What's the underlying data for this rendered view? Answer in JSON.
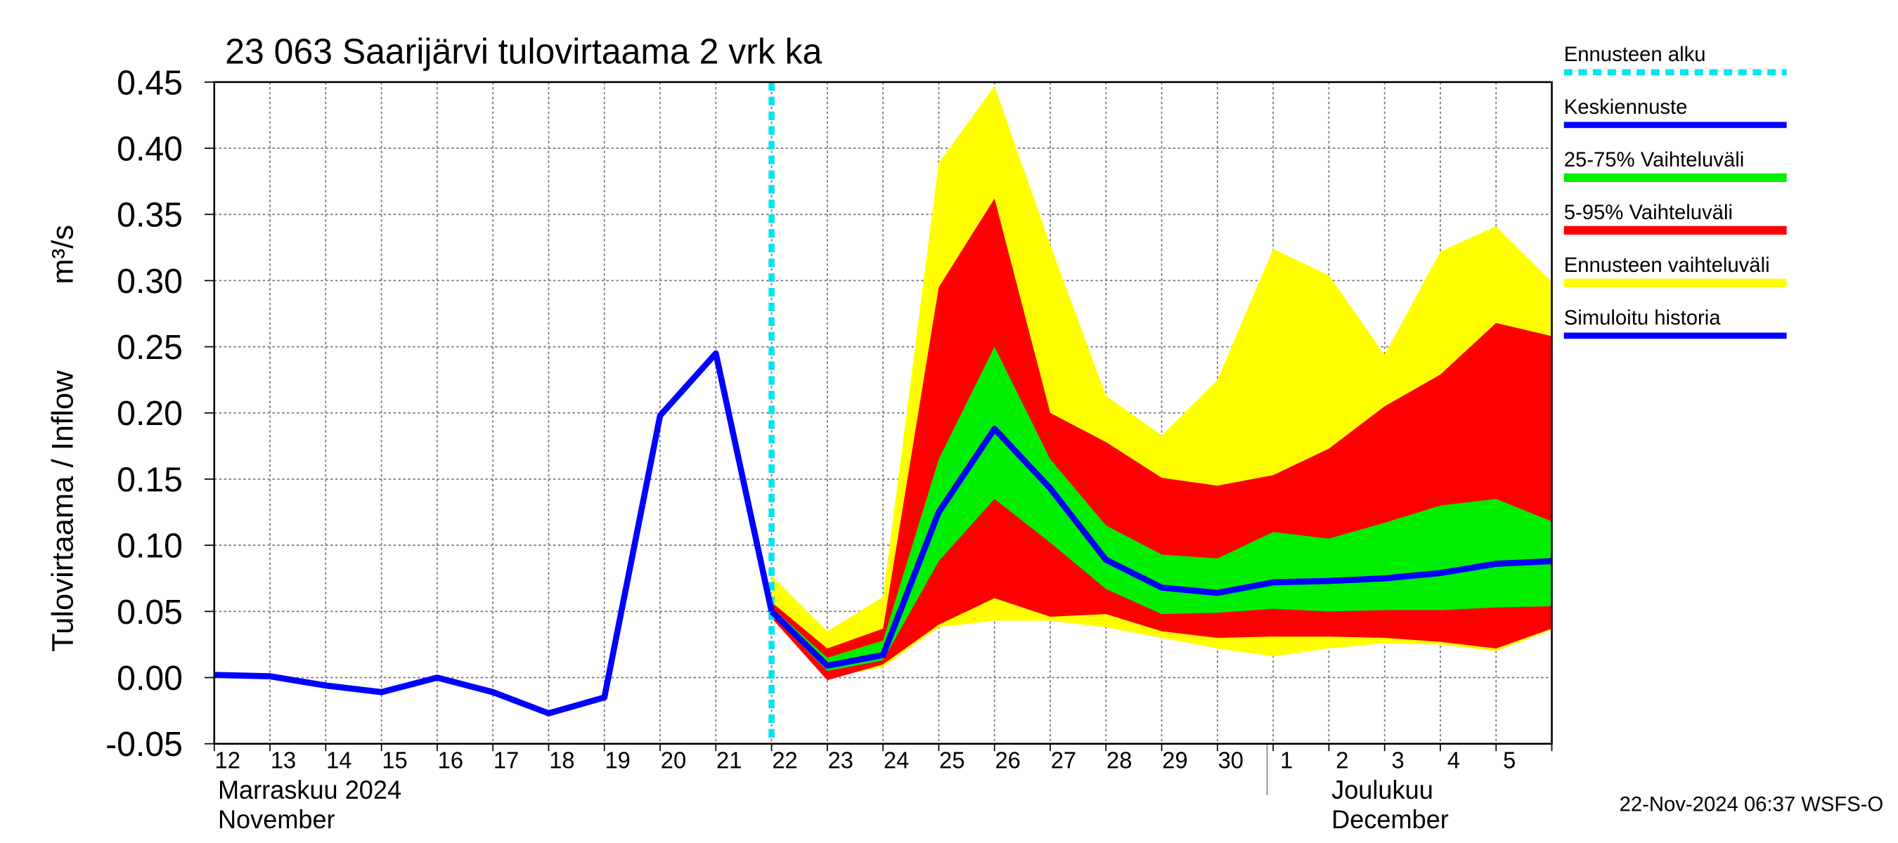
{
  "chart_data": {
    "type": "line",
    "title": "23 063 Saarijärvi tulovirtaama 2 vrk ka",
    "y_label": "Tulovirtaama / Inflow",
    "y_unit": "m³/s",
    "month_labels": [
      "Marraskuu 2024",
      "November",
      "Joulukuu",
      "December"
    ],
    "footer": "22-Nov-2024 06:37 WSFS-O",
    "categories": [
      "12",
      "13",
      "14",
      "15",
      "16",
      "17",
      "18",
      "19",
      "20",
      "21",
      "22",
      "23",
      "24",
      "25",
      "26",
      "27",
      "28",
      "29",
      "30",
      "1",
      "2",
      "3",
      "4",
      "5",
      null
    ],
    "ylim": [
      -0.05,
      0.45
    ],
    "yticks": [
      {
        "value": -0.05,
        "label": "-0.05"
      },
      {
        "value": 0,
        "label": "0.00"
      },
      {
        "value": 0.05,
        "label": "0.05"
      },
      {
        "value": 0.1,
        "label": "0.10"
      },
      {
        "value": 0.15,
        "label": "0.15"
      },
      {
        "value": 0.2,
        "label": "0.20"
      },
      {
        "value": 0.25,
        "label": "0.25"
      },
      {
        "value": 0.3,
        "label": "0.30"
      },
      {
        "value": 0.35,
        "label": "0.35"
      },
      {
        "value": 0.4,
        "label": "0.40"
      },
      {
        "value": 0.45,
        "label": "0.45"
      }
    ],
    "grid": true,
    "series": [
      {
        "name": "Ennusteen alku",
        "color": "#00e5ee",
        "style": "vline",
        "x": 10
      },
      {
        "name": "Keskiennuste",
        "color": "#0000ff",
        "style": "line",
        "values": [
          null,
          null,
          null,
          null,
          null,
          null,
          null,
          null,
          null,
          null,
          0.05,
          0.009,
          0.017,
          0.125,
          0.188,
          0.143,
          0.089,
          0.068,
          0.064,
          0.072,
          0.073,
          0.075,
          0.079,
          0.086,
          0.088
        ]
      },
      {
        "name": "25-75% Vaihteluväli",
        "color": "#00ee00",
        "style": "band",
        "lower": [
          null,
          null,
          null,
          null,
          null,
          null,
          null,
          null,
          null,
          null,
          0.047,
          0.005,
          0.013,
          0.088,
          0.135,
          0.102,
          0.067,
          0.048,
          0.049,
          0.052,
          0.05,
          0.051,
          0.051,
          0.053,
          0.054
        ],
        "upper": [
          null,
          null,
          null,
          null,
          null,
          null,
          null,
          null,
          null,
          null,
          0.053,
          0.015,
          0.028,
          0.165,
          0.25,
          0.165,
          0.115,
          0.093,
          0.09,
          0.11,
          0.105,
          0.117,
          0.13,
          0.135,
          0.118
        ]
      },
      {
        "name": "5-95% Vaihteluväli",
        "color": "#ff0000",
        "style": "band",
        "lower": [
          null,
          null,
          null,
          null,
          null,
          null,
          null,
          null,
          null,
          null,
          0.045,
          -0.002,
          0.01,
          0.04,
          0.06,
          0.046,
          0.048,
          0.035,
          0.03,
          0.031,
          0.031,
          0.03,
          0.027,
          0.022,
          0.037
        ],
        "upper": [
          null,
          null,
          null,
          null,
          null,
          null,
          null,
          null,
          null,
          null,
          0.057,
          0.022,
          0.037,
          0.295,
          0.362,
          0.2,
          0.178,
          0.151,
          0.145,
          0.153,
          0.173,
          0.205,
          0.229,
          0.268,
          0.258
        ]
      },
      {
        "name": "Ennusteen vaihteluväli",
        "color": "#ffff00",
        "style": "band",
        "lower": [
          null,
          null,
          null,
          null,
          null,
          null,
          null,
          null,
          null,
          null,
          0.045,
          0,
          0.008,
          0.038,
          0.043,
          0.043,
          0.038,
          0.03,
          0.022,
          0.016,
          0.022,
          0.026,
          0.025,
          0.02,
          0.036
        ],
        "upper": [
          null,
          null,
          null,
          null,
          null,
          null,
          null,
          null,
          null,
          null,
          0.077,
          0.035,
          0.061,
          0.389,
          0.447,
          0.327,
          0.213,
          0.183,
          0.225,
          0.324,
          0.304,
          0.244,
          0.322,
          0.341,
          0.299
        ]
      },
      {
        "name": "Simuloitu historia",
        "color": "#0000ff",
        "style": "line",
        "values": [
          0.002,
          0.001,
          -0.006,
          -0.011,
          0,
          -0.011,
          -0.027,
          -0.015,
          0.198,
          0.245,
          0.05,
          null,
          null,
          null,
          null,
          null,
          null,
          null,
          null,
          null,
          null,
          null,
          null,
          null,
          null
        ]
      }
    ]
  }
}
